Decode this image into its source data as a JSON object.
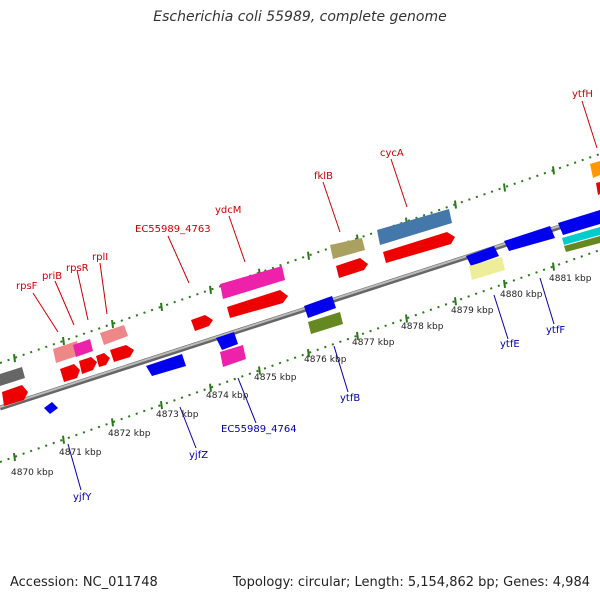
{
  "title": "Escherichia coli 55989, complete genome",
  "footer": {
    "accession": "Accession: NC_011748",
    "summary": "Topology: circular; Length: 5,154,862 bp; Genes: 4,984"
  },
  "colors": {
    "forward_label": "#cc0000",
    "reverse_label": "#0000aa",
    "tick": "#2a7a1a",
    "backbone": "#888888"
  },
  "kbp_labels": [
    "4870 kbp",
    "4871 kbp",
    "4872 kbp",
    "4873 kbp",
    "4874 kbp",
    "4875 kbp",
    "4876 kbp",
    "4877 kbp",
    "4878 kbp",
    "4879 kbp",
    "4880 kbp",
    "4881 kbp"
  ],
  "forward_gene_labels": [
    "rpsF",
    "priB",
    "rpsR",
    "rplI",
    "EC55989_4763",
    "ydcM",
    "fklB",
    "cycA",
    "ytfH"
  ],
  "reverse_gene_labels": [
    "yjfY",
    "yjfZ",
    "EC55989_4764",
    "ytfB",
    "ytfE",
    "ytfF"
  ],
  "feature_colors": [
    "#ff0000",
    "#ee8888",
    "#ee22aa",
    "#0000ee",
    "#668822",
    "#aaa060",
    "#4477aa",
    "#eeee99",
    "#ff9900",
    "#00cccc",
    "#666666"
  ]
}
